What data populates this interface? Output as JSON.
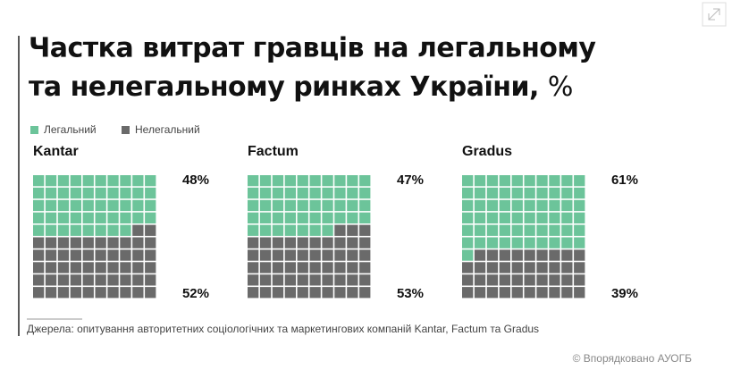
{
  "chart_data": {
    "type": "waffle",
    "title": [
      "Частка витрат гравців на легальному",
      "та нелегальному ринках України,"
    ],
    "title_unit": "%",
    "series": [
      {
        "name": "Легальний",
        "color": "#6cc49a"
      },
      {
        "name": "Нелегальний",
        "color": "#6a6a6a"
      }
    ],
    "panels": [
      {
        "name": "Kantar",
        "values": [
          48,
          52
        ],
        "value_labels": [
          "48%",
          "52%"
        ]
      },
      {
        "name": "Factum",
        "values": [
          47,
          53
        ],
        "value_labels": [
          "47%",
          "53%"
        ]
      },
      {
        "name": "Gradus",
        "values": [
          61,
          39
        ],
        "value_labels": [
          "61%",
          "39%"
        ]
      }
    ],
    "source": "Джерела: опитування авторитетних соціологічних та маркетингових компаній Kantar, Factum та Gradus",
    "credit": "© Впорядковано АУОГБ"
  }
}
